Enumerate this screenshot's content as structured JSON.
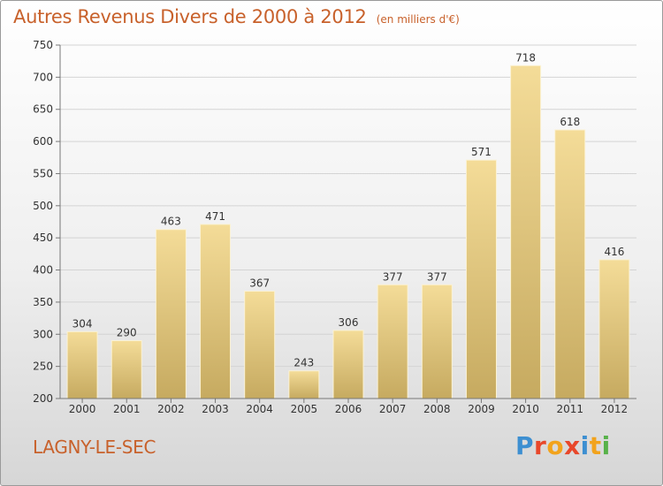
{
  "chart_data": {
    "type": "bar",
    "title": "Autres Revenus Divers de 2000 à 2012",
    "subtitle": "(en milliers d'€)",
    "categories": [
      "2000",
      "2001",
      "2002",
      "2003",
      "2004",
      "2005",
      "2006",
      "2007",
      "2008",
      "2009",
      "2010",
      "2011",
      "2012"
    ],
    "values": [
      304,
      290,
      463,
      471,
      367,
      243,
      306,
      377,
      377,
      571,
      718,
      618,
      416
    ],
    "ylim": [
      200,
      750
    ],
    "yticks": [
      200,
      250,
      300,
      350,
      400,
      450,
      500,
      550,
      600,
      650,
      700,
      750
    ],
    "grid": true,
    "xlabel": "",
    "ylabel": ""
  },
  "footer": {
    "commune": "LAGNY-LE-SEC",
    "logo_letters": [
      "P",
      "r",
      "o",
      "x",
      "i",
      "t",
      "i"
    ],
    "logo_colors": [
      "#3d8fd1",
      "#e8472a",
      "#f2a31c",
      "#e8472a",
      "#3d8fd1",
      "#f2a31c",
      "#58b24a"
    ]
  },
  "colors": {
    "text": "#c8612b",
    "bar_top": "#f4dc98",
    "bar_bottom": "#c6aa60"
  }
}
